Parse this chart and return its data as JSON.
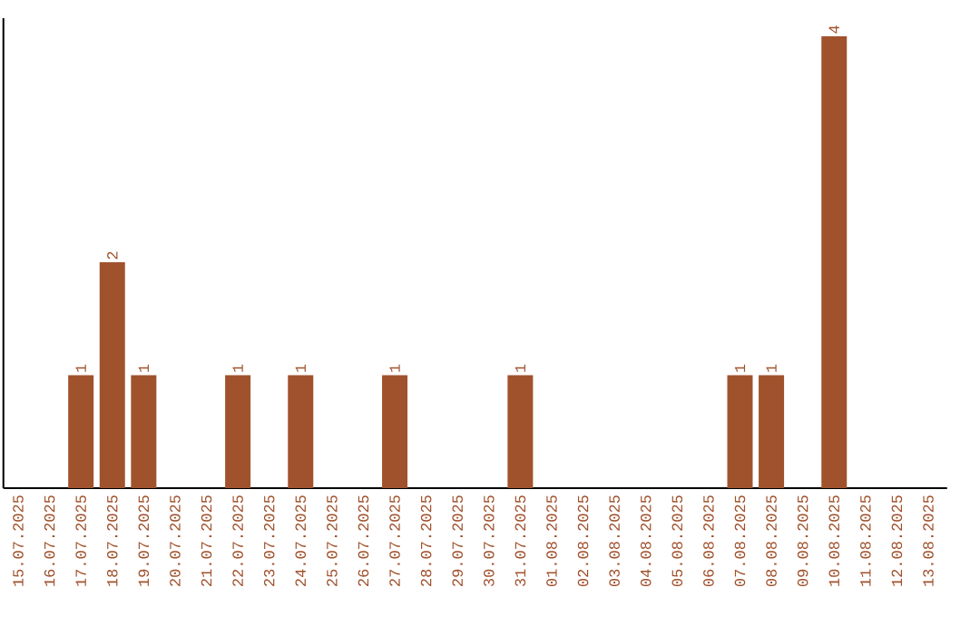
{
  "chart_data": {
    "type": "bar",
    "categories": [
      "15.07.2025",
      "16.07.2025",
      "17.07.2025",
      "18.07.2025",
      "19.07.2025",
      "20.07.2025",
      "21.07.2025",
      "22.07.2025",
      "23.07.2025",
      "24.07.2025",
      "25.07.2025",
      "26.07.2025",
      "27.07.2025",
      "28.07.2025",
      "29.07.2025",
      "30.07.2025",
      "31.07.2025",
      "01.08.2025",
      "02.08.2025",
      "03.08.2025",
      "04.08.2025",
      "05.08.2025",
      "06.08.2025",
      "07.08.2025",
      "08.08.2025",
      "09.08.2025",
      "10.08.2025",
      "11.08.2025",
      "12.08.2025",
      "13.08.2025"
    ],
    "values": [
      0,
      0,
      1,
      2,
      1,
      0,
      0,
      1,
      0,
      1,
      0,
      0,
      1,
      0,
      0,
      0,
      1,
      0,
      0,
      0,
      0,
      0,
      0,
      1,
      1,
      0,
      4,
      0,
      0,
      0
    ],
    "value_labels": [
      null,
      null,
      "1",
      "2",
      "1",
      null,
      null,
      "1",
      null,
      "1",
      null,
      null,
      "1",
      null,
      null,
      null,
      "1",
      null,
      null,
      null,
      null,
      null,
      null,
      "1",
      "1",
      null,
      "4",
      null,
      null,
      null
    ],
    "color": "#a0522d"
  }
}
